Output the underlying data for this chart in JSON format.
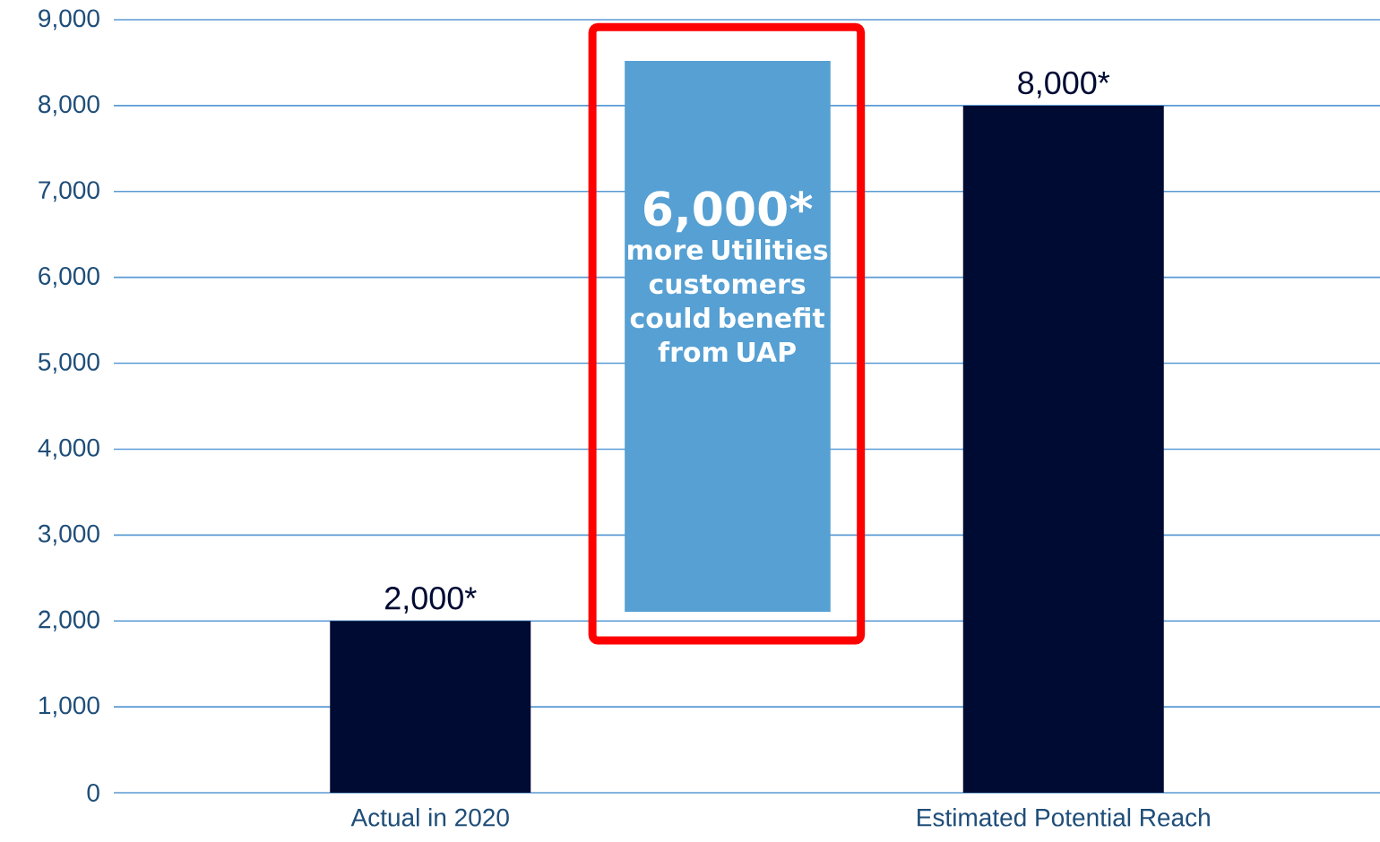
{
  "chart_data": {
    "type": "bar",
    "categories": [
      "Actual in 2020",
      "Estimated Potential Reach"
    ],
    "values": [
      2000,
      8000
    ],
    "value_labels": [
      "2,000*",
      "8,000*"
    ],
    "color": "#000b33",
    "ylim": [
      0,
      9000
    ],
    "yticks": [
      0,
      {
        "value": 1000,
        "label": "1,000"
      },
      {
        "value": 2000,
        "label": "2,000"
      },
      {
        "value": 3000,
        "label": "3,000"
      },
      {
        "value": 4000,
        "label": "4,000"
      },
      {
        "value": 5000,
        "label": "5,000"
      },
      {
        "value": 6000,
        "label": "6,000"
      },
      {
        "value": 7000,
        "label": "7,000"
      },
      {
        "value": 8000,
        "label": "8,000"
      },
      {
        "value": 9000,
        "label": "9,000"
      }
    ],
    "grid": "y",
    "annotations": [
      "6,000*",
      "more Utilities customers could benefit from UAP"
    ]
  }
}
